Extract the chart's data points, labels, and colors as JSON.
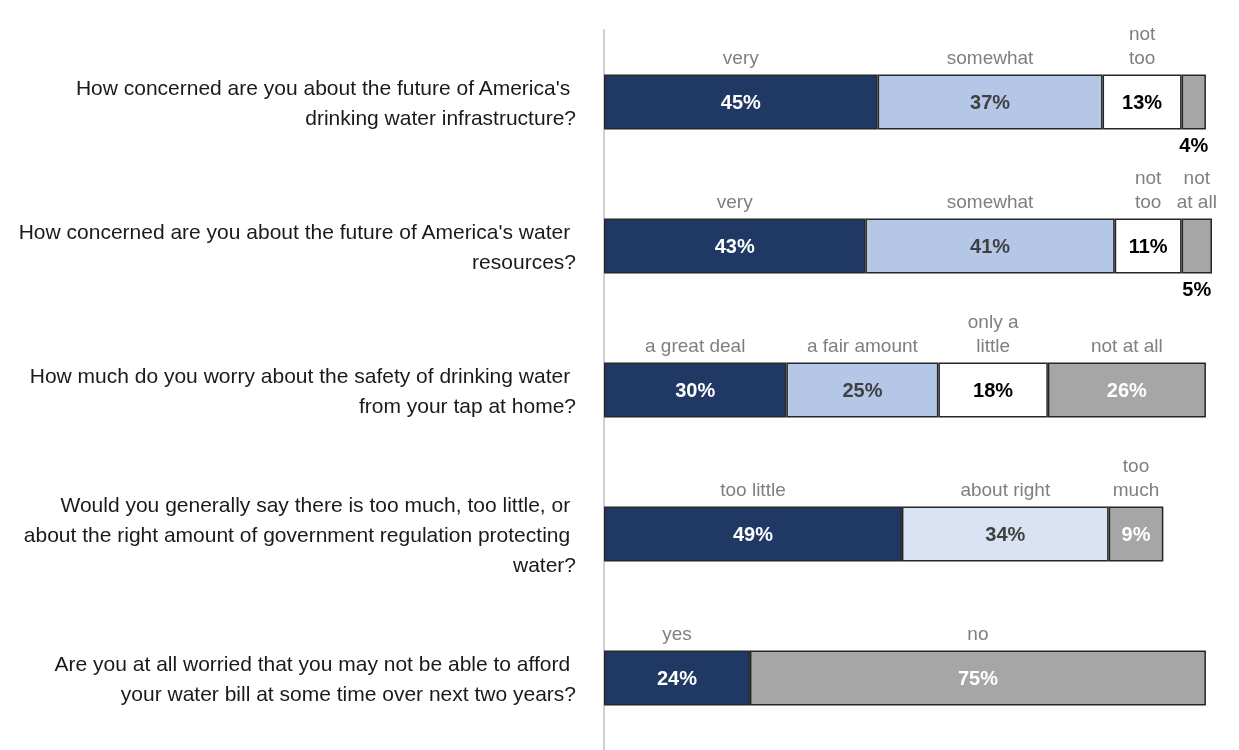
{
  "chart_data": {
    "type": "bar",
    "orientation": "horizontal",
    "stacked": true,
    "categories": [
      "How concerned are you about the future of America's drinking water infrastructure?",
      "How concerned are you about the future of America's water resources?",
      "How much do you worry about the safety of drinking water from your tap at home?",
      "Would you generally say there is too much, too little, or about the right amount of government regulation protecting water?",
      "Are you at all worried that you may not be able to afford your water bill at some time over next two years?"
    ],
    "series": [
      {
        "colors": [
          "#1f3864",
          "#1f3864",
          "#1f3864",
          "#1f3864",
          "#1f3864"
        ],
        "values": [
          45,
          43,
          30,
          49,
          24
        ],
        "value_labels": [
          "45%",
          "43%",
          "30%",
          "49%",
          "24%"
        ]
      },
      {
        "colors": [
          "#b4c7e7",
          "#b4c7e7",
          "#b4c7e7",
          "#dae3f3",
          "#a6a6a6"
        ],
        "values": [
          37,
          41,
          25,
          34,
          75
        ],
        "value_labels": [
          "37%",
          "41%",
          "25%",
          "34%",
          "75%"
        ]
      },
      {
        "colors": [
          "#ffffff",
          "#ffffff",
          "#ffffff",
          "#a6a6a6",
          null
        ],
        "values": [
          13,
          11,
          18,
          9,
          null
        ],
        "value_labels": [
          "13%",
          "11%",
          "18%",
          "9%",
          null
        ]
      },
      {
        "colors": [
          "#a6a6a6",
          "#a6a6a6",
          "#a6a6a6",
          null,
          null
        ],
        "values": [
          4,
          5,
          26,
          null,
          null
        ],
        "value_labels": [
          "4%",
          "5%",
          "26%",
          null,
          null
        ]
      }
    ],
    "annotations": [
      "very",
      "somewhat",
      "not\ntoo",
      "very",
      "somewhat",
      "not\ntoo",
      "not\nat all",
      "a great deal",
      "a fair amount",
      "only a\nlittle",
      "not at all",
      "too little",
      "about right",
      "too\nmuch",
      "yes",
      "no"
    ]
  }
}
